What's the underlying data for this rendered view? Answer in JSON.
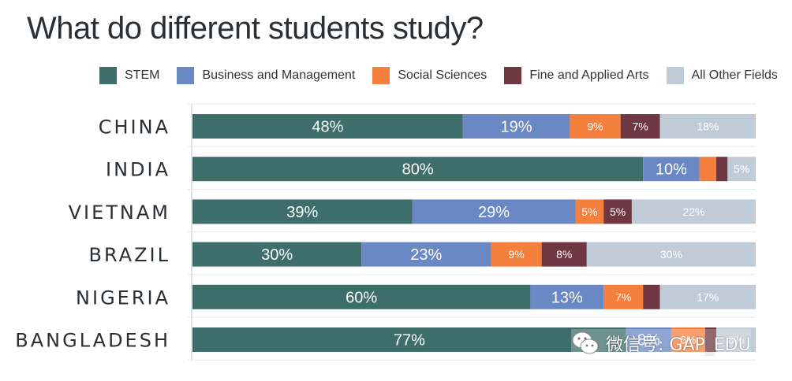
{
  "title": "What do different students study?",
  "watermark": "微信号: GAP_EDU",
  "chart_data": {
    "type": "bar",
    "orientation": "horizontal",
    "stacked": true,
    "title": "What do different students study?",
    "legend_position": "top",
    "categories": [
      "CHINA",
      "INDIA",
      "VIETNAM",
      "BRAZIL",
      "NIGERIA",
      "BANGLADESH"
    ],
    "series": [
      {
        "name": "STEM",
        "color": "#3d6e6a",
        "values": [
          48,
          80,
          39,
          30,
          60,
          77
        ]
      },
      {
        "name": "Business and Management",
        "color": "#6a88c4",
        "values": [
          19,
          10,
          29,
          23,
          13,
          8
        ]
      },
      {
        "name": "Social Sciences",
        "color": "#f57f3c",
        "values": [
          9,
          3,
          5,
          9,
          7,
          6
        ]
      },
      {
        "name": "Fine and Applied Arts",
        "color": "#6e3742",
        "values": [
          7,
          2,
          5,
          8,
          3,
          2
        ]
      },
      {
        "name": "All Other Fields",
        "color": "#bfccd8",
        "values": [
          18,
          5,
          22,
          30,
          17,
          8
        ]
      }
    ],
    "data_labels": [
      [
        "48%",
        "19%",
        "9%",
        "7%",
        "18%"
      ],
      [
        "80%",
        "10%",
        "",
        "",
        "5%"
      ],
      [
        "39%",
        "29%",
        "5%",
        "5%",
        "22%"
      ],
      [
        "30%",
        "23%",
        "9%",
        "8%",
        "30%"
      ],
      [
        "60%",
        "13%",
        "7%",
        "",
        "17%"
      ],
      [
        "77%",
        "8%",
        "6%",
        "",
        "8%"
      ]
    ],
    "xlim": [
      0,
      100
    ],
    "grid": "horizontal"
  }
}
